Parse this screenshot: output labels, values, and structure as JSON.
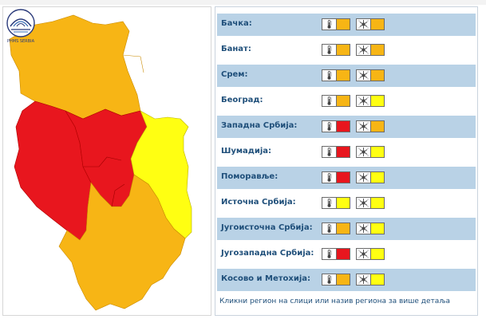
{
  "colors": {
    "orange": "#F7B515",
    "red": "#E8161E",
    "yellow": "#FFFF12",
    "lightYellow": "#F7F233",
    "rowBlue": "#B9D2E6",
    "label": "#1F4F7A"
  },
  "map": {
    "regions": [
      {
        "id": "north",
        "level": "orange"
      },
      {
        "id": "west",
        "level": "red"
      },
      {
        "id": "central",
        "level": "red"
      },
      {
        "id": "east",
        "level": "yellow"
      },
      {
        "id": "south",
        "level": "orange"
      }
    ],
    "logo_text": "PHMS SERBIA"
  },
  "regions": [
    {
      "name": "Бачка:",
      "heat": "orange",
      "cold": "orange"
    },
    {
      "name": "Банат:",
      "heat": "orange",
      "cold": "orange"
    },
    {
      "name": "Срем:",
      "heat": "orange",
      "cold": "orange"
    },
    {
      "name": "Београд:",
      "heat": "orange",
      "cold": "yellow"
    },
    {
      "name": "Западна Србија:",
      "heat": "red",
      "cold": "orange"
    },
    {
      "name": "Шумадија:",
      "heat": "red",
      "cold": "yellow"
    },
    {
      "name": "Поморавље:",
      "heat": "red",
      "cold": "yellow"
    },
    {
      "name": "Источна Србија:",
      "heat": "yellow",
      "cold": "yellow"
    },
    {
      "name": "Југоисточна Србија:",
      "heat": "orange",
      "cold": "yellow"
    },
    {
      "name": "Југозападна Србија:",
      "heat": "red",
      "cold": "yellow"
    },
    {
      "name": "Косово и Метохија:",
      "heat": "orange",
      "cold": "yellow"
    }
  ],
  "footer_note": "Кликни регион на слици или назив региона за више детаља"
}
